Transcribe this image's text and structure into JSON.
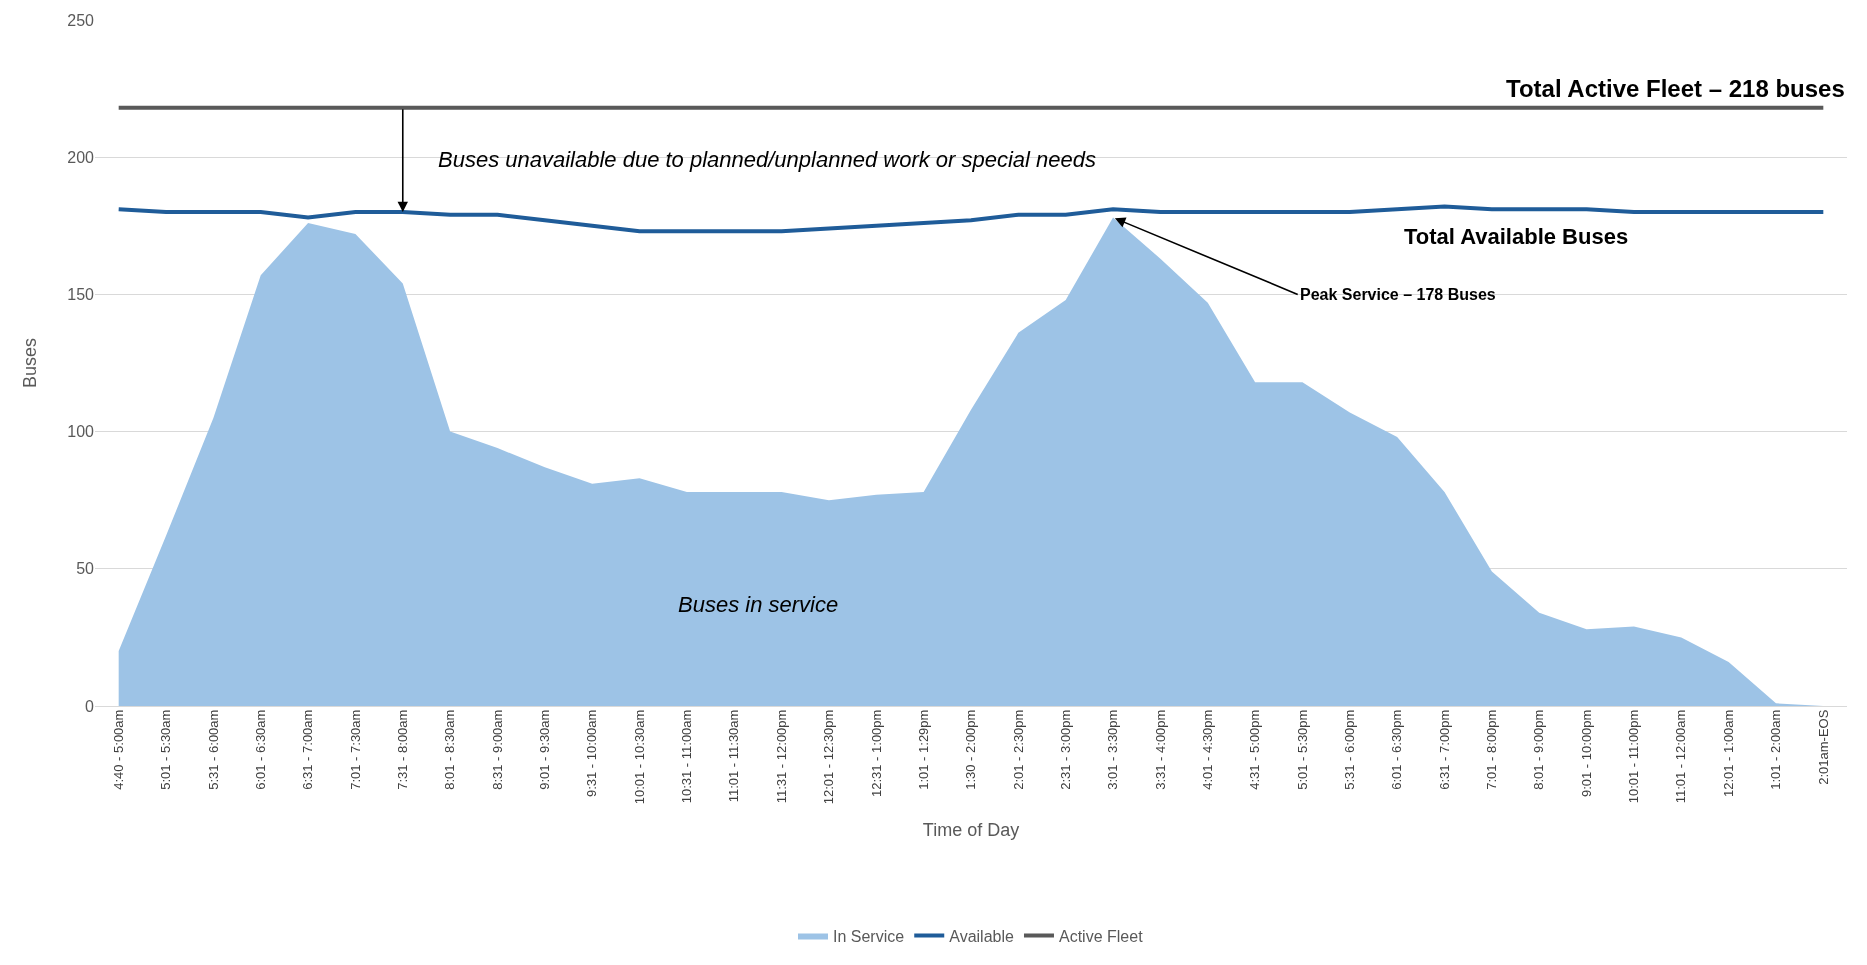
{
  "chart_data": {
    "type": "area",
    "xlabel": "Time of Day",
    "ylabel": "Buses",
    "categories": [
      "4:40 - 5:00am",
      "5:01 - 5:30am",
      "5:31 - 6:00am",
      "6:01 - 6:30am",
      "6:31 - 7:00am",
      "7:01 - 7:30am",
      "7:31 - 8:00am",
      "8:01 - 8:30am",
      "8:31 - 9:00am",
      "9:01 - 9:30am",
      "9:31 - 10:00am",
      "10:01 - 10:30am",
      "10:31 - 11:00am",
      "11:01 - 11:30am",
      "11:31 - 12:00pm",
      "12:01 - 12:30pm",
      "12:31 - 1:00pm",
      "1:01 - 1:29pm",
      "1:30 - 2:00pm",
      "2:01 - 2:30pm",
      "2:31 - 3:00pm",
      "3:01 - 3:30pm",
      "3:31 - 4:00pm",
      "4:01 - 4:30pm",
      "4:31 - 5:00pm",
      "5:01 - 5:30pm",
      "5:31 - 6:00pm",
      "6:01 - 6:30pm",
      "6:31 - 7:00pm",
      "7:01 - 8:00pm",
      "8:01 - 9:00pm",
      "9:01 - 10:00pm",
      "10:01 - 11:00pm",
      "11:01 - 12:00am",
      "12:01 - 1:00am",
      "1:01 - 2:00am",
      "2:01am-EOS"
    ],
    "series": [
      {
        "name": "In Service",
        "color": "#9dc3e6",
        "values": [
          20,
          62,
          105,
          157,
          176,
          172,
          154,
          100,
          94,
          87,
          81,
          83,
          78,
          78,
          78,
          75,
          77,
          78,
          108,
          136,
          148,
          178,
          163,
          147,
          118,
          118,
          107,
          98,
          78,
          49,
          34,
          28,
          29,
          25,
          16,
          1,
          0
        ]
      },
      {
        "name": "Available",
        "type": "line",
        "color": "#1f5c99",
        "values": [
          181,
          180,
          180,
          180,
          178,
          180,
          180,
          179,
          179,
          177,
          175,
          173,
          173,
          173,
          173,
          174,
          175,
          176,
          177,
          179,
          179,
          181,
          180,
          180,
          180,
          180,
          180,
          181,
          182,
          181,
          181,
          181,
          180,
          180,
          180,
          180,
          180
        ]
      },
      {
        "name": "Active Fleet",
        "type": "line",
        "color": "#595959",
        "values": [
          218,
          218,
          218,
          218,
          218,
          218,
          218,
          218,
          218,
          218,
          218,
          218,
          218,
          218,
          218,
          218,
          218,
          218,
          218,
          218,
          218,
          218,
          218,
          218,
          218,
          218,
          218,
          218,
          218,
          218,
          218,
          218,
          218,
          218,
          218,
          218,
          218
        ]
      }
    ],
    "annotations": [
      "Total Active Fleet – 218 buses",
      {
        "text": "Buses unavailable due to planned/unplanned work or special needs",
        "x": "7:31 - 8:00am",
        "y": 180
      },
      "Total Available Buses",
      {
        "text": "Peak Service – 178 Buses",
        "x": "3:01 - 3:30pm",
        "y": 178
      },
      "Buses in service"
    ],
    "ylim": [
      0,
      250
    ],
    "yticks": [
      0,
      50,
      100,
      150,
      200,
      250
    ],
    "grid": "y",
    "legend": "bottom",
    "marker": "none",
    "line_style": "solid"
  }
}
